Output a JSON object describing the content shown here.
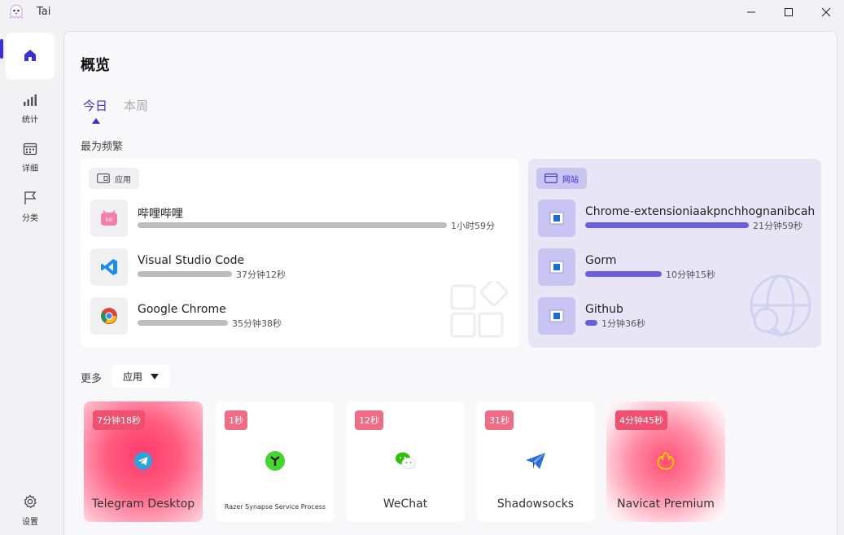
{
  "window": {
    "title": "Tai"
  },
  "sidebar": {
    "items": [
      {
        "label": ""
      },
      {
        "label": "统计"
      },
      {
        "label": "详细"
      },
      {
        "label": "分类"
      }
    ],
    "settings_label": "设置"
  },
  "main": {
    "title": "概览",
    "tabs": [
      {
        "label": "今日"
      },
      {
        "label": "本周"
      }
    ],
    "frequent_label": "最为频繁",
    "apps_card": {
      "chip": "应用",
      "rows": [
        {
          "name": "哔哩哔哩",
          "time": "1小时59分",
          "fraction": 1.0
        },
        {
          "name": "Visual Studio Code",
          "time": "37分钟12秒",
          "fraction": 0.31
        },
        {
          "name": "Google Chrome",
          "time": "35分钟38秒",
          "fraction": 0.3
        }
      ]
    },
    "web_card": {
      "chip": "网站",
      "rows": [
        {
          "name": "Chrome-extensioniaakpnchhognanibcahlp",
          "time": "21分钟59秒",
          "fraction": 1.0
        },
        {
          "name": "Gorm",
          "time": "10分钟15秒",
          "fraction": 0.47
        },
        {
          "name": "Github",
          "time": "1分钟36秒",
          "fraction": 0.07
        }
      ]
    },
    "more": {
      "label": "更多",
      "select_value": "应用"
    },
    "tiles": [
      {
        "name": "Telegram Desktop",
        "time": "7分钟18秒"
      },
      {
        "name": "Razer Synapse Service Process",
        "time": "1秒"
      },
      {
        "name": "WeChat",
        "time": "12秒"
      },
      {
        "name": "Shadowsocks",
        "time": "31秒"
      },
      {
        "name": "Navicat Premium",
        "time": "4分钟45秒"
      }
    ]
  },
  "colors": {
    "accent": "#3b2fd6",
    "bar_purple": "#6b5fe0",
    "badge_pink": "#f06b84"
  }
}
